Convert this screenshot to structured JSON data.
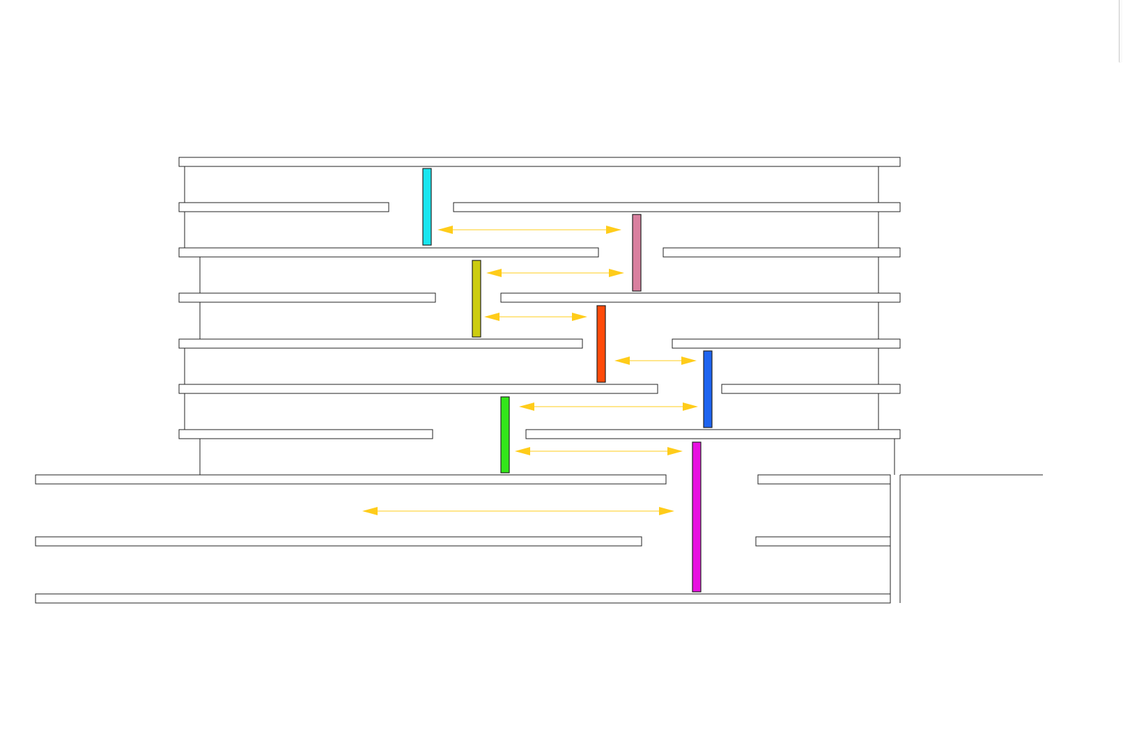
{
  "diagram": {
    "colors": {
      "outline": "#222222",
      "fill": "#ffffff",
      "arrow": "#ffcc1a"
    },
    "sliders": [
      {
        "name": "cyan-slider",
        "color": "#18e6f0"
      },
      {
        "name": "pink-slider",
        "color": "#d9809f"
      },
      {
        "name": "yellow-slider",
        "color": "#cccc10"
      },
      {
        "name": "red-slider",
        "color": "#ff4a0a"
      },
      {
        "name": "blue-slider",
        "color": "#1e64f0"
      },
      {
        "name": "green-slider",
        "color": "#33e61a"
      },
      {
        "name": "magenta-slider",
        "color": "#e810e0"
      }
    ]
  }
}
